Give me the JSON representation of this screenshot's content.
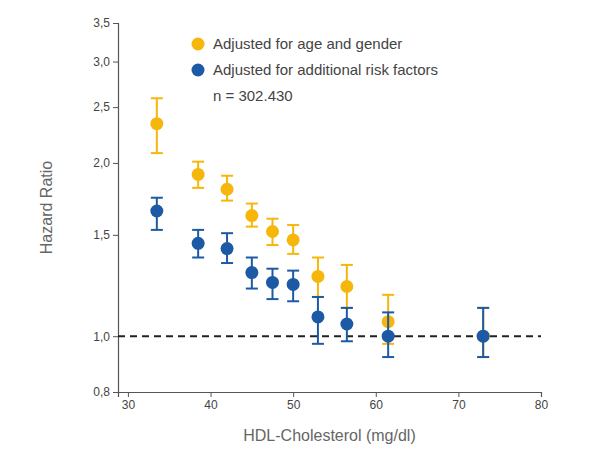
{
  "chart_data": {
    "type": "scatter",
    "x_label": "HDL-Cholesterol (mg/dl)",
    "y_label": "Hazard Ratio",
    "annotation": "n = 302.430",
    "x": [
      33.5,
      38.5,
      42,
      45,
      47.5,
      50,
      53,
      56.5,
      61.5,
      73
    ],
    "series": [
      {
        "name": "Adjusted for age and gender",
        "color": "#f6b60c",
        "marker": "circle",
        "values": [
          2.34,
          1.91,
          1.8,
          1.62,
          1.52,
          1.47,
          1.27,
          1.22,
          1.06,
          1.0
        ],
        "ci_low": [
          2.08,
          1.81,
          1.72,
          1.55,
          1.44,
          1.39,
          1.17,
          1.12,
          0.97,
          0.92
        ],
        "ci_high": [
          2.59,
          2.01,
          1.9,
          1.7,
          1.6,
          1.56,
          1.37,
          1.33,
          1.18,
          1.12
        ]
      },
      {
        "name": "Adjusted for additional risk factors",
        "color": "#1c5aa6",
        "marker": "circle",
        "values": [
          1.65,
          1.45,
          1.42,
          1.29,
          1.24,
          1.23,
          1.08,
          1.05,
          1.0,
          1.0
        ],
        "ci_low": [
          1.53,
          1.37,
          1.34,
          1.21,
          1.16,
          1.15,
          0.97,
          0.98,
          0.92,
          0.92
        ],
        "ci_high": [
          1.74,
          1.53,
          1.51,
          1.37,
          1.31,
          1.3,
          1.17,
          1.12,
          1.1,
          1.12
        ]
      }
    ],
    "reference_line": 1,
    "xlim": [
      28.8,
      80
    ],
    "xticks": [
      30,
      40,
      50,
      60,
      70,
      80
    ],
    "ylim": [
      0.8,
      3.5
    ],
    "yticks": [
      {
        "value": 0.8,
        "label": "0,8"
      },
      {
        "value": 1.0,
        "label": "1,0"
      },
      {
        "value": 1.5,
        "label": "1,5"
      },
      {
        "value": 2.0,
        "label": "2,0"
      },
      {
        "value": 2.5,
        "label": "2,5"
      },
      {
        "value": 3.0,
        "label": "3,0"
      },
      {
        "value": 3.5,
        "label": "3,5"
      }
    ],
    "log": "y",
    "grid": false,
    "legend": "upper left"
  }
}
